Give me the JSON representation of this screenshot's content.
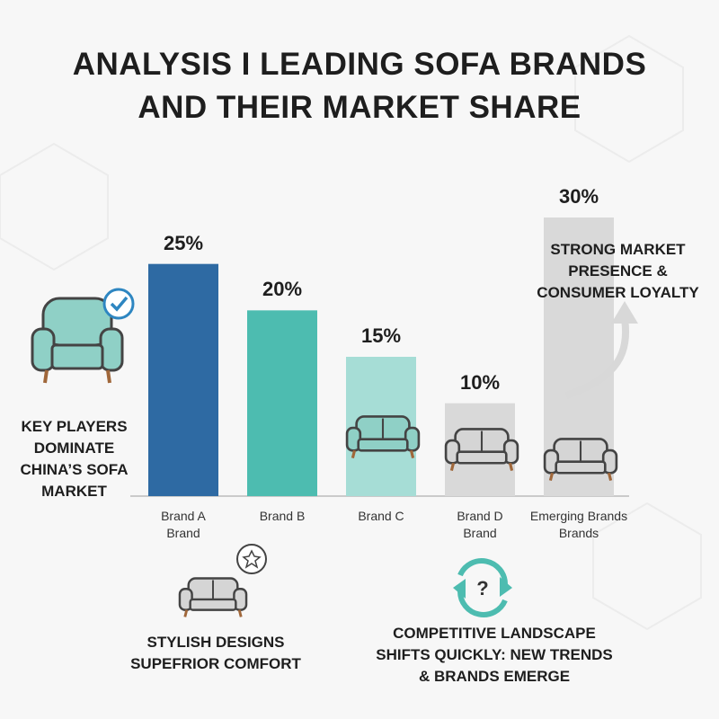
{
  "chart_data": {
    "type": "bar",
    "title": "ANALYSIS I LEADING SOFA BRANDS AND THEIR MARKET SHARE",
    "categories": [
      "Brand A\nBrand",
      "Brand B",
      "Brand C",
      "Brand D\nBrand",
      "Emerging Brands\nBrands"
    ],
    "values": [
      25,
      20,
      15,
      10,
      30
    ],
    "value_labels": [
      "25%",
      "20%",
      "15%",
      "10%",
      "30%"
    ],
    "colors": [
      "#2e6aa3",
      "#4dbcb0",
      "#a6ddd6",
      "#d9d9d9",
      "#d9d9d9"
    ],
    "annotations": [
      "KEY PLAYERS DOMINATE CHINA’S SOFA MARKET",
      "STRONG MARKET PRESENCE & CONSUMER LOYALTY",
      "STYLISH DESIGNS SUPEFRIOR COMFORT",
      "COMPETITIVE LANDSCAPE SHIFTS QUICKLY: NEW TRENDS & BRANDS EMERGE"
    ]
  }
}
